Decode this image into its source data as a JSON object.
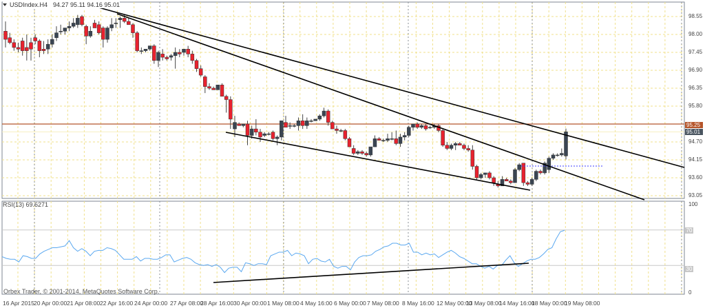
{
  "header": {
    "symbol": "USDIndex.H4",
    "ohlc": "94.27 95.11 94.16 95.01"
  },
  "rsi_panel": {
    "title": "RSI(13) 69.6271",
    "levels": [
      "70",
      "30"
    ],
    "axis": [
      "100",
      "0"
    ]
  },
  "footer": {
    "copyright": "Orbex Trader, © 2001-2014, MetaQuotes Software Corp."
  },
  "price_axis": {
    "ticks": [
      "98.55",
      "98.00",
      "97.45",
      "96.90",
      "96.35",
      "95.80",
      "94.70",
      "94.15",
      "93.60",
      "93.05"
    ],
    "horizontal_line_label": "95.25",
    "current_price_label": "95.01"
  },
  "time_axis": {
    "ticks": [
      "16 Apr 2015",
      "20 Apr 00:00",
      "21 Apr 08:00",
      "22 Apr 16:00",
      "24 Apr 00:00",
      "27 Apr 08:00",
      "28 Apr 16:00",
      "30 Apr 00:00",
      "1 May 08:00",
      "4 May 16:00",
      "6 May 00:00",
      "7 May 08:00",
      "8 May 16:00",
      "12 May 00:00",
      "13 May 08:00",
      "14 May 16:00",
      "18 May 00:00",
      "19 May 08:00"
    ]
  },
  "colors": {
    "bull": "#3a4552",
    "bear": "#e8222e",
    "grid": "#f0e08a",
    "separator": "#8a8f96",
    "rsi_line": "#5aa8f0",
    "hline": "#b5552a",
    "current_price_bg": "#4a5560",
    "trendline": "#000000",
    "dotted_level": "#3b3bff"
  },
  "chart_data": [
    {
      "type": "candlestick",
      "title": "USDIndex.H4 94.27 95.11 94.16 95.01",
      "xlabel": "",
      "ylabel": "",
      "ylim": [
        93.0,
        98.9
      ],
      "x_ticks": [
        "16 Apr 2015",
        "20 Apr 00:00",
        "21 Apr 08:00",
        "22 Apr 16:00",
        "24 Apr 00:00",
        "27 Apr 08:00",
        "28 Apr 16:00",
        "30 Apr 00:00",
        "1 May 08:00",
        "4 May 16:00",
        "6 May 00:00",
        "7 May 08:00",
        "8 May 16:00",
        "12 May 00:00",
        "13 May 08:00",
        "14 May 16:00",
        "18 May 00:00",
        "19 May 08:00"
      ],
      "y_ticks": [
        98.55,
        98.0,
        97.45,
        96.9,
        96.35,
        95.8,
        94.7,
        94.15,
        93.6,
        93.05
      ],
      "horizontal_line": 95.25,
      "current_price": 95.01,
      "last_candle": {
        "open": 94.27,
        "high": 95.11,
        "low": 94.16,
        "close": 95.01
      },
      "candles": [
        [
          98.1,
          98.4,
          97.6,
          97.85
        ],
        [
          97.9,
          98.05,
          97.7,
          97.75
        ],
        [
          97.75,
          97.85,
          97.5,
          97.6
        ],
        [
          97.6,
          97.75,
          97.45,
          97.55
        ],
        [
          97.8,
          97.9,
          97.35,
          97.5
        ],
        [
          97.6,
          98.0,
          97.2,
          97.5
        ],
        [
          97.75,
          97.9,
          97.2,
          97.55
        ],
        [
          97.9,
          98.0,
          97.7,
          97.8
        ],
        [
          97.8,
          97.85,
          97.3,
          97.5
        ],
        [
          97.55,
          97.8,
          97.4,
          97.5
        ],
        [
          97.55,
          97.85,
          97.4,
          97.7
        ],
        [
          97.7,
          98.0,
          97.6,
          97.85
        ],
        [
          97.9,
          98.25,
          97.8,
          98.05
        ],
        [
          98.1,
          98.3,
          98.0,
          98.1
        ],
        [
          98.1,
          98.2,
          98.0,
          98.2
        ],
        [
          98.2,
          98.4,
          98.1,
          98.25
        ],
        [
          98.25,
          98.5,
          98.2,
          98.35
        ],
        [
          98.3,
          98.6,
          98.2,
          98.5
        ],
        [
          98.55,
          98.6,
          98.25,
          98.3
        ],
        [
          98.25,
          98.3,
          97.7,
          97.95
        ],
        [
          97.95,
          98.25,
          97.9,
          98.1
        ],
        [
          98.35,
          98.45,
          98.2,
          98.2
        ],
        [
          98.3,
          98.4,
          98.0,
          98.05
        ],
        [
          98.2,
          98.25,
          97.6,
          97.85
        ],
        [
          97.85,
          98.25,
          97.75,
          98.2
        ],
        [
          98.2,
          98.5,
          98.1,
          98.3
        ],
        [
          98.35,
          98.5,
          98.2,
          98.35
        ],
        [
          98.45,
          98.55,
          98.2,
          98.5
        ],
        [
          98.5,
          98.6,
          98.35,
          98.4
        ],
        [
          98.4,
          98.5,
          98.3,
          98.3
        ],
        [
          98.3,
          98.35,
          97.9,
          98.05
        ],
        [
          98.05,
          98.1,
          97.45,
          97.5
        ],
        [
          97.5,
          97.6,
          97.4,
          97.5
        ],
        [
          97.5,
          97.55,
          97.45,
          97.55
        ],
        [
          97.55,
          97.65,
          97.5,
          97.65
        ],
        [
          97.65,
          97.7,
          97.1,
          97.2
        ],
        [
          97.2,
          97.5,
          97.0,
          97.45
        ],
        [
          97.4,
          97.55,
          97.2,
          97.3
        ],
        [
          97.3,
          97.35,
          97.2,
          97.25
        ],
        [
          97.3,
          97.4,
          97.2,
          97.35
        ],
        [
          97.35,
          97.6,
          96.95,
          97.45
        ],
        [
          97.45,
          97.55,
          97.3,
          97.4
        ],
        [
          97.45,
          97.55,
          97.35,
          97.55
        ],
        [
          97.55,
          97.65,
          97.3,
          97.4
        ],
        [
          97.4,
          97.5,
          97.1,
          97.2
        ],
        [
          97.2,
          97.25,
          96.85,
          96.95
        ],
        [
          96.95,
          97.05,
          96.7,
          96.75
        ],
        [
          96.7,
          96.75,
          96.2,
          96.4
        ],
        [
          96.4,
          96.5,
          96.3,
          96.35
        ],
        [
          96.35,
          96.4,
          96.3,
          96.3
        ],
        [
          96.3,
          96.45,
          96.3,
          96.45
        ],
        [
          96.45,
          96.5,
          96.1,
          96.1
        ],
        [
          96.1,
          96.15,
          95.6,
          96.0
        ],
        [
          96.0,
          96.1,
          95.1,
          95.4
        ],
        [
          95.1,
          95.5,
          94.85,
          95.3
        ],
        [
          95.25,
          95.3,
          95.2,
          95.2
        ],
        [
          95.2,
          95.25,
          95.15,
          95.25
        ],
        [
          95.25,
          95.35,
          94.6,
          94.9
        ],
        [
          94.9,
          95.2,
          94.8,
          95.1
        ],
        [
          95.1,
          95.4,
          94.9,
          95.0
        ],
        [
          95.0,
          95.1,
          94.7,
          94.85
        ],
        [
          94.9,
          95.0,
          94.85,
          94.95
        ],
        [
          94.95,
          95.0,
          94.9,
          94.95
        ],
        [
          95.0,
          95.05,
          94.75,
          94.8
        ],
        [
          94.8,
          94.9,
          94.6,
          94.85
        ],
        [
          94.85,
          95.35,
          94.75,
          95.35
        ],
        [
          95.3,
          95.5,
          95.15,
          95.15
        ],
        [
          95.2,
          95.3,
          95.1,
          95.2
        ],
        [
          95.2,
          95.25,
          95.15,
          95.2
        ],
        [
          95.2,
          95.45,
          95.05,
          95.35
        ],
        [
          95.35,
          95.55,
          95.1,
          95.2
        ],
        [
          95.2,
          95.45,
          95.1,
          95.35
        ],
        [
          95.35,
          95.4,
          95.3,
          95.35
        ],
        [
          95.35,
          95.4,
          95.35,
          95.4
        ],
        [
          95.4,
          95.55,
          95.35,
          95.5
        ],
        [
          95.5,
          95.75,
          95.45,
          95.65
        ],
        [
          95.65,
          95.7,
          95.2,
          95.3
        ],
        [
          95.3,
          95.35,
          95.1,
          95.1
        ],
        [
          95.1,
          95.2,
          94.95,
          95.05
        ],
        [
          95.05,
          95.1,
          95.0,
          95.05
        ],
        [
          95.05,
          95.1,
          94.75,
          94.8
        ],
        [
          94.8,
          94.85,
          94.55,
          94.55
        ],
        [
          94.5,
          94.6,
          94.3,
          94.35
        ],
        [
          94.35,
          94.45,
          94.3,
          94.4
        ],
        [
          94.4,
          94.45,
          94.3,
          94.35
        ],
        [
          94.35,
          94.4,
          94.25,
          94.3
        ],
        [
          94.3,
          94.55,
          94.25,
          94.55
        ],
        [
          94.55,
          94.9,
          94.55,
          94.8
        ],
        [
          94.8,
          94.85,
          94.75,
          94.75
        ],
        [
          94.75,
          94.8,
          94.7,
          94.75
        ],
        [
          94.75,
          94.95,
          94.7,
          94.8
        ],
        [
          94.8,
          95.0,
          94.75,
          94.8
        ],
        [
          94.8,
          95.05,
          94.6,
          94.65
        ],
        [
          94.65,
          94.95,
          94.55,
          94.85
        ],
        [
          94.85,
          95.0,
          94.75,
          94.9
        ],
        [
          94.9,
          95.2,
          94.85,
          95.15
        ],
        [
          95.15,
          95.25,
          95.05,
          95.25
        ],
        [
          95.25,
          95.3,
          95.1,
          95.15
        ],
        [
          95.15,
          95.25,
          95.1,
          95.2
        ],
        [
          95.2,
          95.25,
          95.05,
          95.1
        ],
        [
          95.15,
          95.2,
          95.1,
          95.15
        ],
        [
          95.15,
          95.25,
          95.1,
          95.2
        ],
        [
          95.2,
          95.25,
          95.0,
          95.05
        ],
        [
          95.05,
          95.1,
          94.55,
          94.6
        ],
        [
          94.6,
          94.7,
          94.45,
          94.5
        ],
        [
          94.5,
          94.65,
          94.45,
          94.6
        ],
        [
          94.6,
          94.7,
          94.45,
          94.65
        ],
        [
          94.65,
          94.7,
          94.6,
          94.6
        ],
        [
          94.6,
          94.65,
          94.45,
          94.5
        ],
        [
          94.5,
          94.6,
          94.4,
          94.45
        ],
        [
          94.45,
          94.6,
          93.85,
          93.95
        ],
        [
          93.95,
          94.0,
          93.55,
          93.6
        ],
        [
          93.6,
          93.75,
          93.55,
          93.7
        ],
        [
          93.7,
          93.75,
          93.6,
          93.75
        ],
        [
          93.75,
          93.8,
          93.55,
          93.6
        ],
        [
          93.6,
          93.65,
          93.35,
          93.45
        ],
        [
          93.4,
          93.5,
          93.3,
          93.35
        ],
        [
          93.35,
          93.65,
          93.35,
          93.55
        ],
        [
          93.55,
          93.6,
          93.5,
          93.5
        ],
        [
          93.5,
          93.55,
          93.4,
          93.45
        ],
        [
          93.45,
          93.9,
          93.45,
          93.85
        ],
        [
          93.85,
          94.05,
          93.8,
          94.0
        ],
        [
          94.05,
          94.05,
          93.35,
          93.45
        ],
        [
          93.45,
          93.5,
          93.35,
          93.4
        ],
        [
          93.4,
          93.6,
          93.35,
          93.55
        ],
        [
          93.55,
          93.85,
          93.5,
          93.8
        ],
        [
          93.8,
          93.85,
          93.7,
          93.75
        ],
        [
          93.75,
          94.1,
          93.7,
          94.05
        ],
        [
          93.85,
          94.25,
          93.75,
          94.2
        ],
        [
          94.2,
          94.35,
          94.15,
          94.3
        ],
        [
          94.3,
          94.35,
          94.25,
          94.3
        ],
        [
          94.3,
          94.5,
          94.25,
          94.35
        ],
        [
          94.27,
          95.11,
          94.16,
          95.01
        ]
      ]
    },
    {
      "type": "line",
      "title": "RSI(13) 69.6271",
      "ylim": [
        0,
        100
      ],
      "y_ticks": [
        100,
        70,
        30,
        0
      ],
      "levels": [
        70,
        30
      ],
      "series": [
        {
          "name": "RSI(13)",
          "last_value": 69.6271,
          "values": [
            40,
            38,
            37,
            37,
            34,
            41,
            40,
            38,
            38,
            43,
            46,
            48,
            50,
            50,
            51,
            52,
            58,
            50,
            46,
            49,
            46,
            41,
            46,
            47,
            47,
            50,
            49,
            47,
            42,
            37,
            37,
            37,
            40,
            35,
            38,
            38,
            37,
            37,
            39,
            42,
            42,
            34,
            36,
            38,
            39,
            37,
            33,
            31,
            30,
            31,
            29,
            31,
            28,
            22,
            27,
            28,
            28,
            23,
            33,
            32,
            30,
            32,
            32,
            31,
            41,
            43,
            45,
            45,
            47,
            41,
            44,
            43,
            41,
            32,
            37,
            38,
            35,
            34,
            37,
            29,
            27,
            29,
            29,
            25,
            34,
            39,
            41,
            41,
            42,
            46,
            48,
            51,
            52,
            55,
            55,
            53,
            53,
            55,
            45,
            45,
            42,
            44,
            42,
            43,
            39,
            42,
            45,
            47,
            44,
            40,
            38,
            35,
            32,
            32,
            29,
            27,
            29,
            26,
            30,
            30,
            36,
            41,
            33,
            29,
            32,
            35,
            37,
            37,
            39,
            43,
            48,
            50,
            60,
            68,
            69.6
          ]
        }
      ]
    }
  ]
}
